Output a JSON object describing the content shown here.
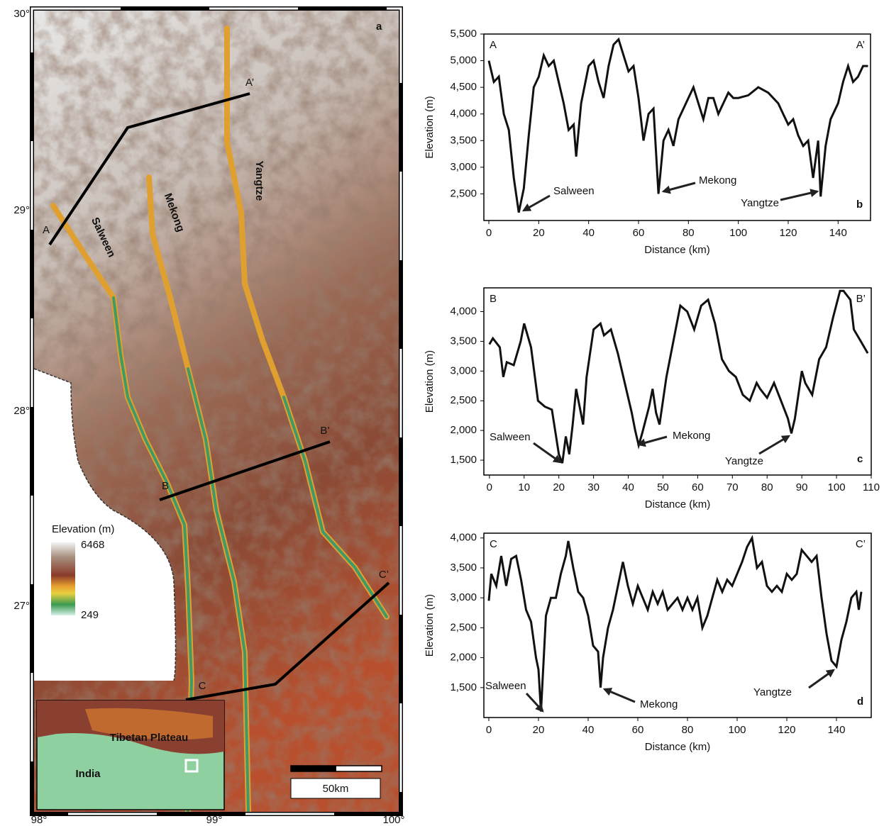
{
  "map": {
    "panel": "a",
    "lat_labels": [
      "30°",
      "29°",
      "28°",
      "27°"
    ],
    "lon_labels": [
      "98°",
      "99°",
      "100°"
    ],
    "rivers": [
      "Salween",
      "Mekong",
      "Yangtze"
    ],
    "sections": [
      "A",
      "A’",
      "B",
      "B’",
      "C",
      "C’"
    ],
    "legend": {
      "title": "Elevation (m)",
      "max": 6468,
      "min": 249
    },
    "inset": {
      "labels": [
        "Tibetan Plateau",
        "India"
      ]
    },
    "scale_bar": "50km"
  },
  "chart_data": [
    {
      "type": "line",
      "panel": "b",
      "start_label": "A",
      "end_label": "A’",
      "x_label": "Distance (km)",
      "y_label": "Elevation (m)",
      "color": "#111111",
      "annotations": [
        "Salween",
        "Mekong",
        "Yangtze"
      ],
      "xlim": [
        -2,
        153
      ],
      "xticks": [
        0,
        20,
        40,
        60,
        80,
        100,
        120,
        140
      ],
      "ylim": [
        2000,
        5500
      ],
      "yticks": [
        {
          "value": 2500,
          "label": "2,500"
        },
        {
          "value": 3000,
          "label": "3,000"
        },
        {
          "value": 3500,
          "label": "3,500"
        },
        {
          "value": 4000,
          "label": "4,000"
        },
        {
          "value": 4500,
          "label": "4,500"
        },
        {
          "value": 5000,
          "label": "5,000"
        },
        {
          "value": 5500,
          "label": "5,500"
        }
      ],
      "x": [
        0,
        2,
        4,
        6,
        8,
        10,
        12,
        14,
        16,
        18,
        20,
        22,
        24,
        26,
        28,
        30,
        32,
        34,
        35,
        37,
        40,
        42,
        44,
        46,
        48,
        50,
        52,
        54,
        56,
        58,
        60,
        62,
        64,
        66,
        68,
        70,
        72,
        74,
        76,
        78,
        80,
        82,
        84,
        86,
        88,
        90,
        92,
        94,
        96,
        98,
        100,
        104,
        108,
        112,
        116,
        118,
        120,
        122,
        124,
        126,
        128,
        130,
        132,
        133,
        135,
        137,
        140,
        142,
        144,
        146,
        148,
        150,
        152
      ],
      "values": [
        5000,
        4600,
        4700,
        4000,
        3700,
        2800,
        2150,
        2600,
        3600,
        4500,
        4700,
        5100,
        4900,
        5000,
        4600,
        4200,
        3700,
        3800,
        3200,
        4200,
        4900,
        5000,
        4600,
        4300,
        4900,
        5300,
        5400,
        5100,
        4800,
        4900,
        4300,
        3500,
        4000,
        4100,
        2500,
        3500,
        3700,
        3400,
        3900,
        4100,
        4300,
        4500,
        4200,
        3900,
        4300,
        4300,
        4000,
        4200,
        4400,
        4300,
        4300,
        4350,
        4500,
        4400,
        4200,
        4000,
        3800,
        3900,
        3600,
        3400,
        3500,
        2800,
        3500,
        2450,
        3400,
        3900,
        4200,
        4600,
        4900,
        4600,
        4700,
        4900,
        4900
      ]
    },
    {
      "type": "line",
      "panel": "c",
      "start_label": "B",
      "end_label": "B’",
      "x_label": "Distance (km)",
      "y_label": "Elevation (m)",
      "color": "#111111",
      "annotations": [
        "Salween",
        "Mekong",
        "Yangtze"
      ],
      "xlim": [
        -1.6,
        110
      ],
      "xticks": [
        0,
        10,
        20,
        30,
        40,
        50,
        60,
        70,
        80,
        90,
        100,
        110
      ],
      "ylim": [
        1250,
        4400
      ],
      "yticks": [
        {
          "value": 1500,
          "label": "1,500"
        },
        {
          "value": 2000,
          "label": "2,000"
        },
        {
          "value": 2500,
          "label": "2,500"
        },
        {
          "value": 3000,
          "label": "3,000"
        },
        {
          "value": 3500,
          "label": "3,500"
        },
        {
          "value": 4000,
          "label": "4,000"
        }
      ],
      "x": [
        0,
        1,
        3,
        4,
        5,
        7,
        9,
        10,
        12,
        14,
        16,
        18,
        20,
        21,
        22,
        23,
        24,
        25,
        27,
        28,
        30,
        32,
        33,
        35,
        37,
        39,
        41,
        42,
        43,
        44,
        46,
        47,
        48,
        49,
        51,
        53,
        55,
        57,
        59,
        61,
        63,
        65,
        67,
        69,
        71,
        73,
        75,
        77,
        78,
        80,
        82,
        84,
        86,
        87,
        88,
        90,
        91,
        93,
        95,
        97,
        99,
        101,
        102,
        104,
        105,
        107,
        109
      ],
      "values": [
        3450,
        3550,
        3400,
        2900,
        3150,
        3100,
        3500,
        3800,
        3400,
        2500,
        2400,
        2350,
        1600,
        1450,
        1900,
        1600,
        2100,
        2700,
        2100,
        2900,
        3700,
        3800,
        3600,
        3700,
        3300,
        2800,
        2300,
        2000,
        1750,
        1950,
        2400,
        2700,
        2300,
        2100,
        2900,
        3500,
        4100,
        4000,
        3700,
        4100,
        4200,
        3800,
        3200,
        3000,
        2900,
        2600,
        2500,
        2800,
        2700,
        2550,
        2800,
        2500,
        2200,
        1950,
        2200,
        3000,
        2800,
        2600,
        3200,
        3400,
        3900,
        4350,
        4350,
        4200,
        3700,
        3500,
        3300
      ]
    },
    {
      "type": "line",
      "panel": "d",
      "start_label": "C",
      "end_label": "C’",
      "x_label": "Distance (km)",
      "y_label": "Elevation (m)",
      "color": "#111111",
      "annotations": [
        "Salween",
        "Mekong",
        "Yangtze"
      ],
      "xlim": [
        -2,
        154
      ],
      "xticks": [
        0,
        20,
        40,
        60,
        80,
        100,
        120,
        140
      ],
      "ylim": [
        1000,
        4080
      ],
      "yticks": [
        {
          "value": 1500,
          "label": "1,500"
        },
        {
          "value": 2000,
          "label": "2,000"
        },
        {
          "value": 2500,
          "label": "2,500"
        },
        {
          "value": 3000,
          "label": "3,000"
        },
        {
          "value": 3500,
          "label": "3,500"
        },
        {
          "value": 4000,
          "label": "4,000"
        }
      ],
      "x": [
        0,
        1,
        3,
        5,
        7,
        9,
        11,
        13,
        15,
        17,
        19,
        20,
        21,
        22,
        23,
        25,
        27,
        29,
        31,
        32,
        34,
        36,
        38,
        40,
        42,
        44,
        45,
        46,
        48,
        50,
        52,
        54,
        56,
        58,
        60,
        62,
        64,
        66,
        68,
        70,
        72,
        74,
        76,
        78,
        80,
        82,
        84,
        86,
        88,
        90,
        92,
        94,
        96,
        98,
        100,
        102,
        104,
        106,
        108,
        110,
        112,
        114,
        116,
        118,
        120,
        122,
        124,
        126,
        128,
        130,
        132,
        134,
        136,
        138,
        140,
        142,
        144,
        146,
        148,
        149,
        150
      ],
      "values": [
        2950,
        3400,
        3200,
        3700,
        3200,
        3650,
        3700,
        3300,
        2800,
        2600,
        2000,
        1800,
        1100,
        1900,
        2700,
        3000,
        3000,
        3400,
        3700,
        3950,
        3500,
        3100,
        3000,
        2700,
        2200,
        2100,
        1500,
        2000,
        2500,
        2800,
        3200,
        3600,
        3200,
        2900,
        3200,
        3000,
        2800,
        3100,
        2900,
        3100,
        2800,
        2900,
        3000,
        2800,
        3000,
        2800,
        3000,
        2500,
        2700,
        3000,
        3300,
        3100,
        3300,
        3200,
        3400,
        3600,
        3850,
        4000,
        3500,
        3600,
        3200,
        3100,
        3200,
        3100,
        3400,
        3300,
        3400,
        3800,
        3700,
        3600,
        3700,
        3000,
        2400,
        1950,
        1850,
        2300,
        2600,
        3000,
        3100,
        2800,
        3100
      ]
    }
  ]
}
